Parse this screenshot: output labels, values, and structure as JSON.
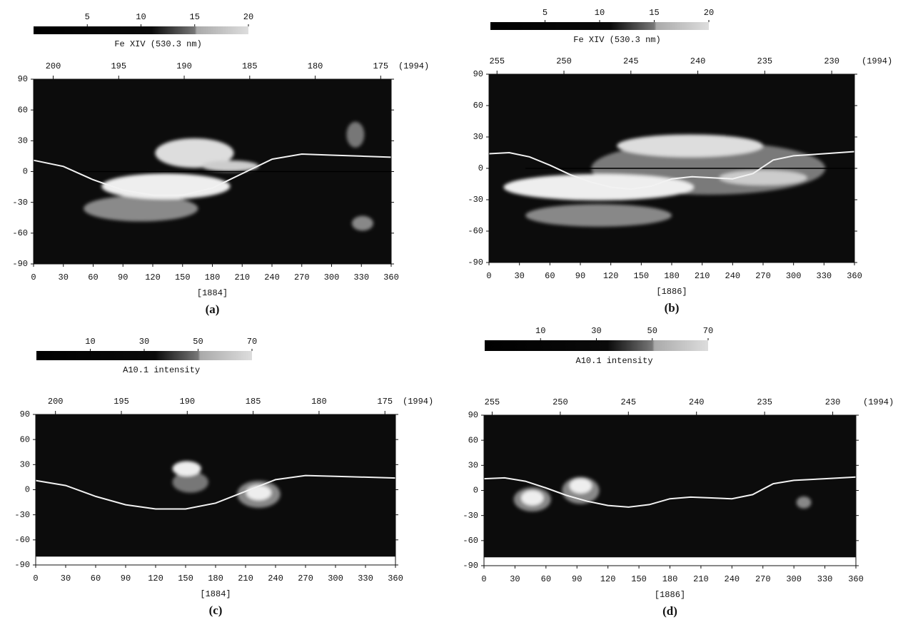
{
  "chart_data": [
    {
      "type": "heatmap",
      "label": "(a)",
      "colorbar": {
        "label": "Fe XIV (530.3 nm)",
        "lim": [
          0,
          20
        ],
        "ticks": [
          5,
          10,
          15,
          20
        ]
      },
      "x2lim": [
        201.5,
        174.2
      ],
      "x2ticks": [
        200,
        195,
        190,
        185,
        180,
        175
      ],
      "x2_label": "(1994)",
      "xlabel": "[1884]",
      "xlim": [
        0,
        360
      ],
      "xticks": [
        0,
        30,
        60,
        90,
        120,
        150,
        180,
        210,
        240,
        270,
        300,
        330,
        360
      ],
      "ylim": [
        -90,
        90
      ],
      "yticks": [
        -90,
        -60,
        -30,
        0,
        30,
        60,
        90
      ],
      "series": [
        {
          "color": "#f2f2f2",
          "x": [
            0,
            30,
            60,
            90,
            120,
            150,
            180,
            210,
            240,
            270,
            300,
            330,
            360
          ],
          "y": [
            11,
            5,
            -8,
            -18,
            -23,
            -23,
            -16,
            -2,
            12,
            17,
            16,
            15,
            14
          ]
        }
      ]
    },
    {
      "type": "heatmap",
      "label": "(b)",
      "colorbar": {
        "label": "Fe XIV (530.3 nm)",
        "lim": [
          0,
          20
        ],
        "ticks": [
          5,
          10,
          15,
          20
        ]
      },
      "x2lim": [
        255.6,
        228.3
      ],
      "x2ticks": [
        255,
        250,
        245,
        240,
        235,
        230
      ],
      "x2_label": "(1994)",
      "xlabel": "[1886]",
      "xlim": [
        0,
        360
      ],
      "xticks": [
        0,
        30,
        60,
        90,
        120,
        150,
        180,
        210,
        240,
        270,
        300,
        330,
        360
      ],
      "ylim": [
        -90,
        90
      ],
      "yticks": [
        -90,
        -60,
        -30,
        0,
        30,
        60,
        90
      ],
      "series": [
        {
          "color": "#f2f2f2",
          "x": [
            0,
            20,
            40,
            60,
            80,
            100,
            120,
            140,
            160,
            180,
            200,
            220,
            240,
            260,
            280,
            300,
            330,
            360
          ],
          "y": [
            14,
            15,
            11,
            3,
            -6,
            -13,
            -18,
            -20,
            -17,
            -10,
            -8,
            -9,
            -10,
            -5,
            8,
            12,
            14,
            16
          ]
        }
      ]
    },
    {
      "type": "heatmap",
      "label": "(c)",
      "colorbar": {
        "label": "A10.1 intensity",
        "lim": [
          -10,
          70
        ],
        "ticks": [
          10,
          30,
          50,
          70
        ]
      },
      "x2lim": [
        201.5,
        174.2
      ],
      "x2ticks": [
        200,
        195,
        190,
        185,
        180,
        175
      ],
      "x2_label": "(1994)",
      "xlabel": "[1884]",
      "xlim": [
        0,
        360
      ],
      "xticks": [
        0,
        30,
        60,
        90,
        120,
        150,
        180,
        210,
        240,
        270,
        300,
        330,
        360
      ],
      "ylim": [
        -90,
        90
      ],
      "yticks": [
        -90,
        -60,
        -30,
        0,
        30,
        60,
        90
      ],
      "series": [
        {
          "color": "#f2f2f2",
          "x": [
            0,
            30,
            60,
            90,
            120,
            150,
            180,
            210,
            240,
            270,
            300,
            330,
            360
          ],
          "y": [
            11,
            5,
            -8,
            -18,
            -23,
            -23,
            -16,
            -2,
            12,
            17,
            16,
            15,
            14
          ]
        }
      ]
    },
    {
      "type": "heatmap",
      "label": "(d)",
      "colorbar": {
        "label": "A10.1 intensity",
        "lim": [
          -10,
          70
        ],
        "ticks": [
          10,
          30,
          50,
          70
        ]
      },
      "x2lim": [
        255.6,
        228.3
      ],
      "x2ticks": [
        255,
        250,
        245,
        240,
        235,
        230
      ],
      "x2_label": "(1994)",
      "xlabel": "[1886]",
      "xlim": [
        0,
        360
      ],
      "xticks": [
        0,
        30,
        60,
        90,
        120,
        150,
        180,
        210,
        240,
        270,
        300,
        330,
        360
      ],
      "ylim": [
        -90,
        90
      ],
      "yticks": [
        -90,
        -60,
        -30,
        0,
        30,
        60,
        90
      ],
      "series": [
        {
          "color": "#f2f2f2",
          "x": [
            0,
            20,
            40,
            60,
            80,
            100,
            120,
            140,
            160,
            180,
            200,
            220,
            240,
            260,
            280,
            300,
            330,
            360
          ],
          "y": [
            14,
            15,
            11,
            3,
            -6,
            -13,
            -18,
            -20,
            -17,
            -10,
            -8,
            -9,
            -10,
            -5,
            8,
            12,
            14,
            16
          ]
        }
      ]
    }
  ]
}
